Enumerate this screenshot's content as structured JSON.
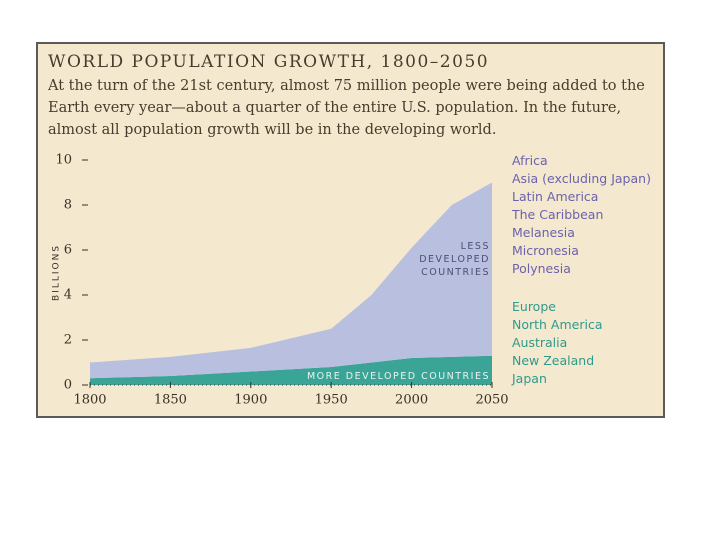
{
  "chart_data": {
    "type": "stacked_area",
    "title": "WORLD POPULATION GROWTH, 1800–2050",
    "subtitle": "At the turn of the 21st century, almost 75 million people were being added to the Earth every year—about a quarter of the entire U.S. population. In the future, almost all population growth will be in the developing world.",
    "ylabel": "BILLIONS",
    "x": [
      1800,
      1850,
      1900,
      1950,
      1975,
      2000,
      2025,
      2050
    ],
    "series": [
      {
        "name": "MORE DEVELOPED COUNTRIES",
        "color": "#3aa597",
        "values": [
          0.3,
          0.4,
          0.6,
          0.8,
          1.0,
          1.2,
          1.25,
          1.3
        ]
      },
      {
        "name": "LESS DEVELOPED COUNTRIES",
        "color": "#b9bfdf",
        "values": [
          0.7,
          0.85,
          1.05,
          1.7,
          3.0,
          4.9,
          6.75,
          7.7
        ]
      }
    ],
    "xlim": [
      1800,
      2050
    ],
    "xticks": [
      1800,
      1850,
      1900,
      1950,
      2000,
      2050
    ],
    "ylim": [
      0,
      10
    ],
    "yticks": [
      0,
      2,
      4,
      6,
      8,
      10
    ],
    "less_developed_regions": [
      "Africa",
      "Asia (excluding Japan)",
      "Latin America",
      "The Caribbean",
      "Melanesia",
      "Micronesia",
      "Polynesia"
    ],
    "more_developed_regions": [
      "Europe",
      "North America",
      "Australia",
      "New Zealand",
      "Japan"
    ]
  }
}
